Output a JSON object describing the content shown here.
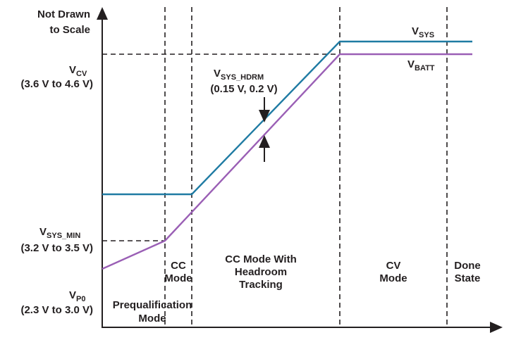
{
  "header_note": [
    "Not Drawn",
    "to Scale"
  ],
  "y_labels": [
    {
      "symbol": "V",
      "subscript": "CV",
      "range": "(3.6 V to 4.6 V)"
    },
    {
      "symbol": "V",
      "subscript": "SYS_MIN",
      "range": "(3.2 V to 3.5 V)"
    },
    {
      "symbol": "V",
      "subscript": "P0",
      "range": "(2.3 V to 3.0 V)"
    }
  ],
  "curves": [
    {
      "symbol": "V",
      "subscript": "SYS"
    },
    {
      "symbol": "V",
      "subscript": "BATT"
    }
  ],
  "headroom": {
    "symbol": "V",
    "subscript": "SYS_HDRM",
    "range": "(0.15 V, 0.2 V)"
  },
  "regions": [
    {
      "lines": [
        "Prequalification",
        "Mode"
      ]
    },
    {
      "lines": [
        "CC",
        "Mode"
      ]
    },
    {
      "lines": [
        "CC Mode With",
        "Headroom",
        "Tracking"
      ]
    },
    {
      "lines": [
        "CV",
        "Mode"
      ]
    },
    {
      "lines": [
        "Done",
        "State"
      ]
    }
  ]
}
